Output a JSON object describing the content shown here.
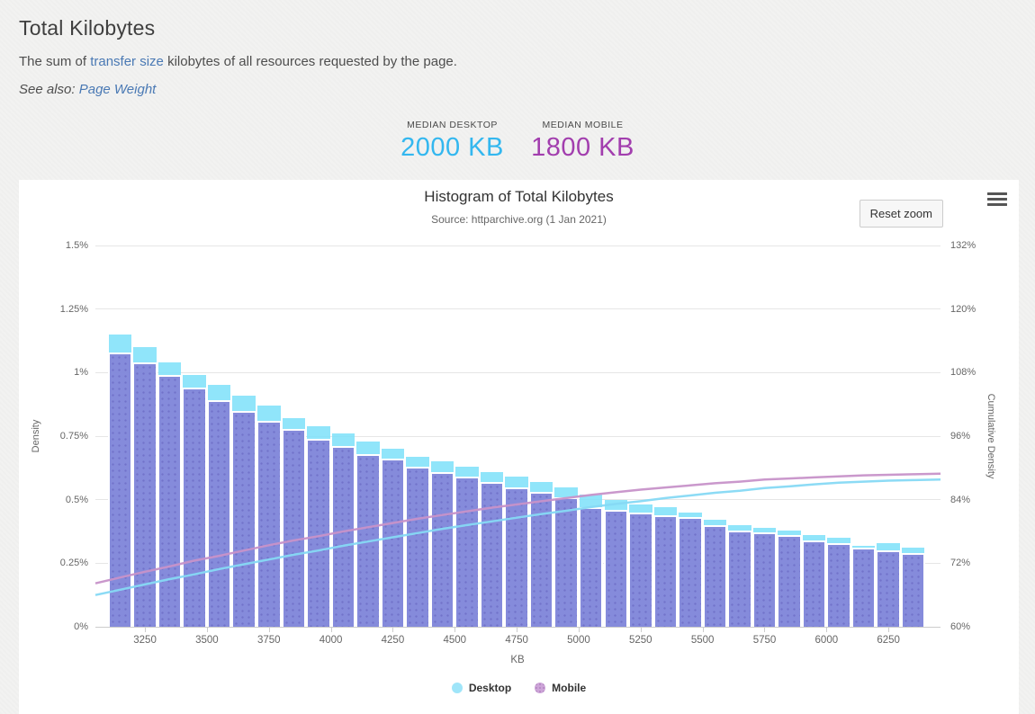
{
  "page": {
    "title": "Total Kilobytes",
    "description_prefix": "The sum of ",
    "description_link": "transfer size",
    "description_suffix": " kilobytes of all resources requested by the page.",
    "see_also_label": "See also: ",
    "see_also_link": "Page Weight",
    "link_color": "#4a79b4"
  },
  "medians": {
    "desktop": {
      "label": "MEDIAN DESKTOP",
      "value": "2000 KB",
      "color": "#33b7ef"
    },
    "mobile": {
      "label": "MEDIAN MOBILE",
      "value": "1800 KB",
      "color": "#a23eae"
    }
  },
  "chart": {
    "title": "Histogram of Total Kilobytes",
    "subtitle": "Source: httparchive.org (1 Jan 2021)",
    "reset_button_label": "Reset zoom",
    "menu_icon": "hamburger-menu-icon"
  },
  "chart_data": {
    "type": "bar",
    "title": "Histogram of Total Kilobytes",
    "subtitle": "Source: httparchive.org (1 Jan 2021)",
    "xlabel": "KB",
    "ylabel_left": "Density",
    "ylabel_right": "Cumulative Density",
    "grid": "horizontal",
    "legend_position": "bottom",
    "bin_width_kb": 100,
    "x_domain": [
      3050,
      6460
    ],
    "x_ticks": [
      3250,
      3500,
      3750,
      4000,
      4250,
      4500,
      4750,
      5000,
      5250,
      5500,
      5750,
      6000,
      6250
    ],
    "left_axis": {
      "min": 0,
      "max": 1.5,
      "tick_values": [
        0,
        0.25,
        0.5,
        0.75,
        1,
        1.25,
        1.5
      ],
      "tick_labels": [
        "0%",
        "0.25%",
        "0.5%",
        "0.75%",
        "1%",
        "1.25%",
        "1.5%"
      ]
    },
    "right_axis": {
      "min": 60,
      "max": 132,
      "tick_values": [
        60,
        72,
        84,
        96,
        108,
        120,
        132
      ],
      "tick_labels": [
        "60%",
        "72%",
        "84%",
        "96%",
        "108%",
        "120%",
        "132%"
      ]
    },
    "bin_start": [
      3100,
      3200,
      3300,
      3400,
      3500,
      3600,
      3700,
      3800,
      3900,
      4000,
      4100,
      4200,
      4300,
      4400,
      4500,
      4600,
      4700,
      4800,
      4900,
      5000,
      5100,
      5200,
      5300,
      5400,
      5500,
      5600,
      5700,
      5800,
      5900,
      6000,
      6100,
      6200,
      6300
    ],
    "series": {
      "desktop_density": {
        "name": "Desktop",
        "type": "histogram",
        "axis": "left",
        "unit": "percent",
        "color": "#97e6fa",
        "values": [
          1.15,
          1.1,
          1.04,
          0.99,
          0.95,
          0.91,
          0.87,
          0.82,
          0.79,
          0.76,
          0.73,
          0.7,
          0.67,
          0.65,
          0.63,
          0.61,
          0.59,
          0.57,
          0.55,
          0.52,
          0.5,
          0.48,
          0.47,
          0.45,
          0.42,
          0.4,
          0.39,
          0.38,
          0.36,
          0.35,
          0.32,
          0.33,
          0.31
        ]
      },
      "mobile_density": {
        "name": "Mobile",
        "type": "histogram",
        "axis": "left",
        "unit": "percent",
        "color": "#9a95dc",
        "values": [
          1.08,
          1.04,
          0.99,
          0.94,
          0.89,
          0.85,
          0.81,
          0.78,
          0.74,
          0.71,
          0.68,
          0.66,
          0.63,
          0.61,
          0.59,
          0.57,
          0.55,
          0.53,
          0.51,
          0.47,
          0.46,
          0.45,
          0.44,
          0.43,
          0.4,
          0.38,
          0.37,
          0.36,
          0.34,
          0.33,
          0.31,
          0.3,
          0.29
        ]
      },
      "desktop_cumulative": {
        "name": "Desktop cumulative",
        "type": "line",
        "axis": "right",
        "unit": "percent",
        "color": "#86d9f4",
        "values": [
          67.0,
          68.0,
          69.0,
          69.9,
          70.9,
          71.8,
          72.7,
          73.6,
          74.4,
          75.3,
          76.1,
          76.9,
          77.7,
          78.5,
          79.2,
          79.9,
          80.6,
          81.3,
          81.9,
          82.6,
          83.2,
          83.7,
          84.3,
          84.8,
          85.3,
          85.7,
          86.2,
          86.5,
          86.9,
          87.2,
          87.4,
          87.6,
          87.7
        ]
      },
      "mobile_cumulative": {
        "name": "Mobile cumulative",
        "type": "line",
        "axis": "right",
        "unit": "percent",
        "color": "#c792c9",
        "values": [
          69.3,
          70.4,
          71.4,
          72.5,
          73.4,
          74.4,
          75.4,
          76.3,
          77.1,
          78.0,
          78.8,
          79.6,
          80.4,
          81.1,
          81.8,
          82.5,
          83.1,
          83.7,
          84.3,
          84.9,
          85.4,
          85.9,
          86.3,
          86.7,
          87.1,
          87.4,
          87.8,
          88.0,
          88.2,
          88.4,
          88.6,
          88.7,
          88.8
        ]
      }
    },
    "legend": [
      {
        "label": "Desktop",
        "color": "#9fe5f9"
      },
      {
        "label": "Mobile",
        "color": "#cda5d8"
      }
    ]
  }
}
